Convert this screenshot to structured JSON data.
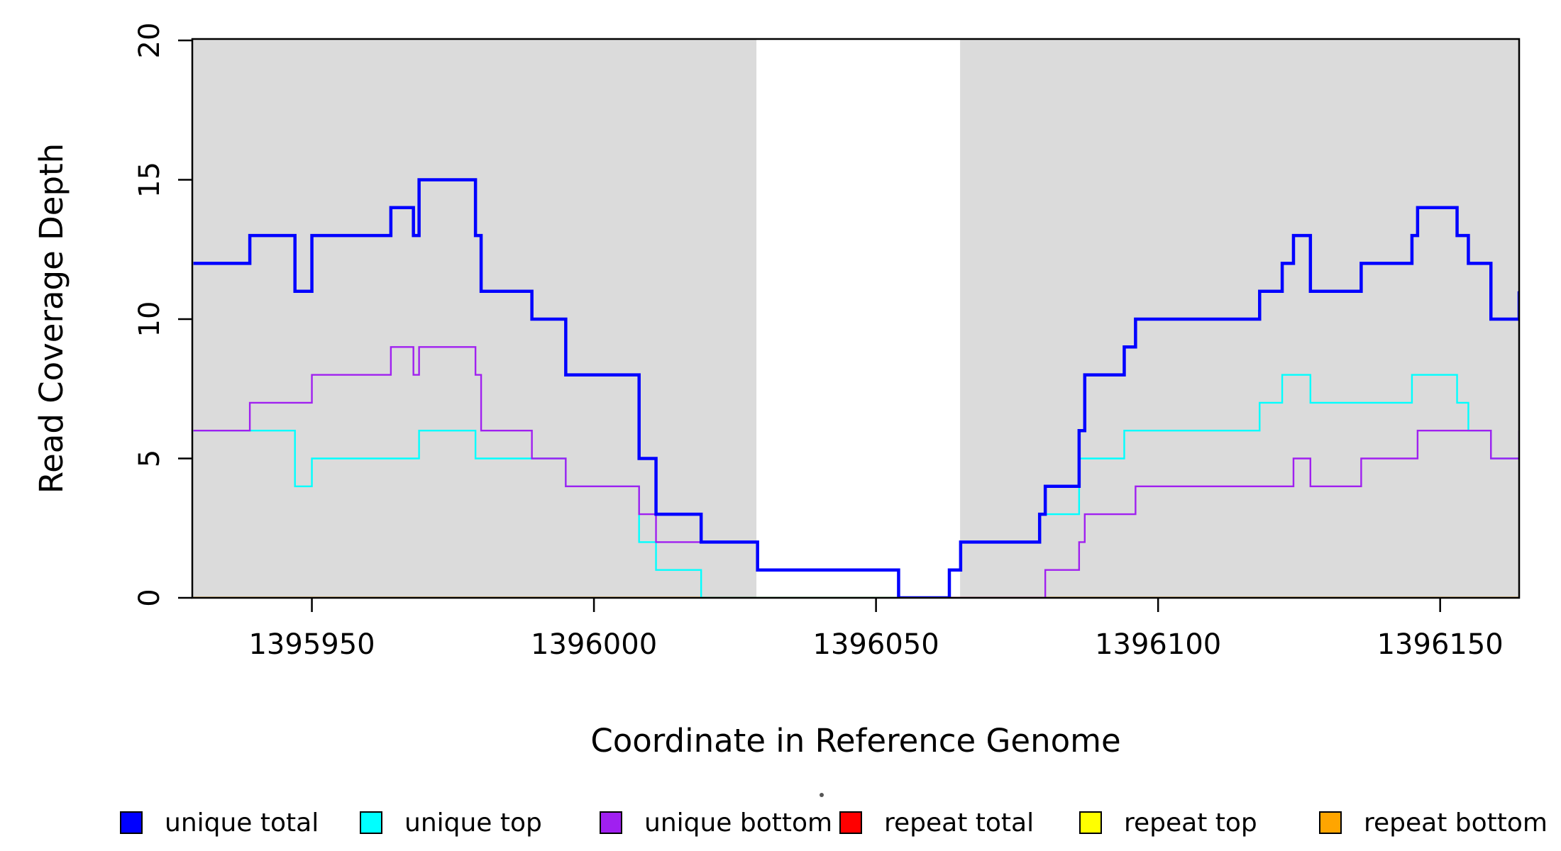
{
  "chart_data": {
    "type": "step",
    "title": "",
    "xlabel": "Coordinate in Reference Genome",
    "ylabel": "Read Coverage Depth",
    "xlim": [
      1395928.8,
      1396164.0
    ],
    "ylim": [
      0,
      20
    ],
    "xticks": [
      "1395950",
      "1396000",
      "1396050",
      "1396100",
      "1396150"
    ],
    "xtick_values": [
      1395950,
      1396000,
      1396050,
      1396100,
      1396150
    ],
    "yticks": [
      "0",
      "5",
      "10",
      "15",
      "20"
    ],
    "ytick_values": [
      0,
      5,
      10,
      15,
      20
    ],
    "grid": false,
    "legend_position": "bottom",
    "shading_color": "#DBDBDB",
    "shaded_regions": [
      [
        1395928.8,
        1396028.8
      ],
      [
        1396064.9,
        1396164.0
      ]
    ],
    "series": [
      {
        "name": "unique total",
        "color": "#0000FF",
        "line_width": 4.5,
        "steps": [
          [
            1395929,
            12
          ],
          [
            1395939,
            13
          ],
          [
            1395947,
            11
          ],
          [
            1395950,
            13
          ],
          [
            1395964,
            14
          ],
          [
            1395968,
            13
          ],
          [
            1395969,
            15
          ],
          [
            1395979,
            13
          ],
          [
            1395980,
            11
          ],
          [
            1395989,
            10
          ],
          [
            1395995,
            8
          ],
          [
            1396008,
            5
          ],
          [
            1396011,
            3
          ],
          [
            1396019,
            2
          ],
          [
            1396029,
            1
          ],
          [
            1396054,
            0
          ],
          [
            1396063,
            1
          ],
          [
            1396065,
            2
          ],
          [
            1396079,
            3
          ],
          [
            1396080,
            4
          ],
          [
            1396086,
            6
          ],
          [
            1396087,
            8
          ],
          [
            1396094,
            9
          ],
          [
            1396096,
            10
          ],
          [
            1396118,
            11
          ],
          [
            1396122,
            12
          ],
          [
            1396124,
            13
          ],
          [
            1396127,
            11
          ],
          [
            1396136,
            12
          ],
          [
            1396145,
            13
          ],
          [
            1396146,
            14
          ],
          [
            1396153,
            13
          ],
          [
            1396155,
            12
          ],
          [
            1396159,
            10
          ],
          [
            1396164,
            11
          ]
        ]
      },
      {
        "name": "unique top",
        "color": "#00FFFF",
        "line_width": 2.4,
        "steps": [
          [
            1395929,
            6
          ],
          [
            1395947,
            4
          ],
          [
            1395950,
            5
          ],
          [
            1395969,
            6
          ],
          [
            1395979,
            5
          ],
          [
            1395995,
            4
          ],
          [
            1396008,
            2
          ],
          [
            1396011,
            1
          ],
          [
            1396019,
            0
          ],
          [
            1396063,
            1
          ],
          [
            1396065,
            2
          ],
          [
            1396079,
            3
          ],
          [
            1396086,
            5
          ],
          [
            1396094,
            6
          ],
          [
            1396118,
            7
          ],
          [
            1396122,
            8
          ],
          [
            1396127,
            7
          ],
          [
            1396145,
            8
          ],
          [
            1396153,
            7
          ],
          [
            1396155,
            6
          ],
          [
            1396159,
            5
          ]
        ]
      },
      {
        "name": "unique bottom",
        "color": "#A020F0",
        "line_width": 2.4,
        "steps": [
          [
            1395929,
            6
          ],
          [
            1395939,
            7
          ],
          [
            1395950,
            8
          ],
          [
            1395964,
            9
          ],
          [
            1395968,
            8
          ],
          [
            1395969,
            9
          ],
          [
            1395979,
            8
          ],
          [
            1395980,
            6
          ],
          [
            1395989,
            5
          ],
          [
            1395995,
            4
          ],
          [
            1396008,
            3
          ],
          [
            1396011,
            2
          ],
          [
            1396029,
            1
          ],
          [
            1396054,
            0
          ],
          [
            1396080,
            1
          ],
          [
            1396086,
            2
          ],
          [
            1396087,
            3
          ],
          [
            1396096,
            4
          ],
          [
            1396124,
            5
          ],
          [
            1396127,
            4
          ],
          [
            1396136,
            5
          ],
          [
            1396146,
            6
          ],
          [
            1396159,
            5
          ],
          [
            1396164,
            6
          ]
        ]
      },
      {
        "name": "repeat total",
        "color": "#FF0000",
        "line_width": 2.4,
        "steps": [
          [
            1395929,
            0
          ]
        ]
      },
      {
        "name": "repeat top",
        "color": "#FFFF00",
        "line_width": 2.4,
        "steps": [
          [
            1395929,
            0
          ]
        ]
      },
      {
        "name": "repeat bottom",
        "color": "#FFA500",
        "line_width": 3,
        "steps": [
          [
            1395929,
            0
          ]
        ]
      }
    ],
    "draw_order": [
      3,
      4,
      5,
      1,
      2,
      0
    ]
  }
}
